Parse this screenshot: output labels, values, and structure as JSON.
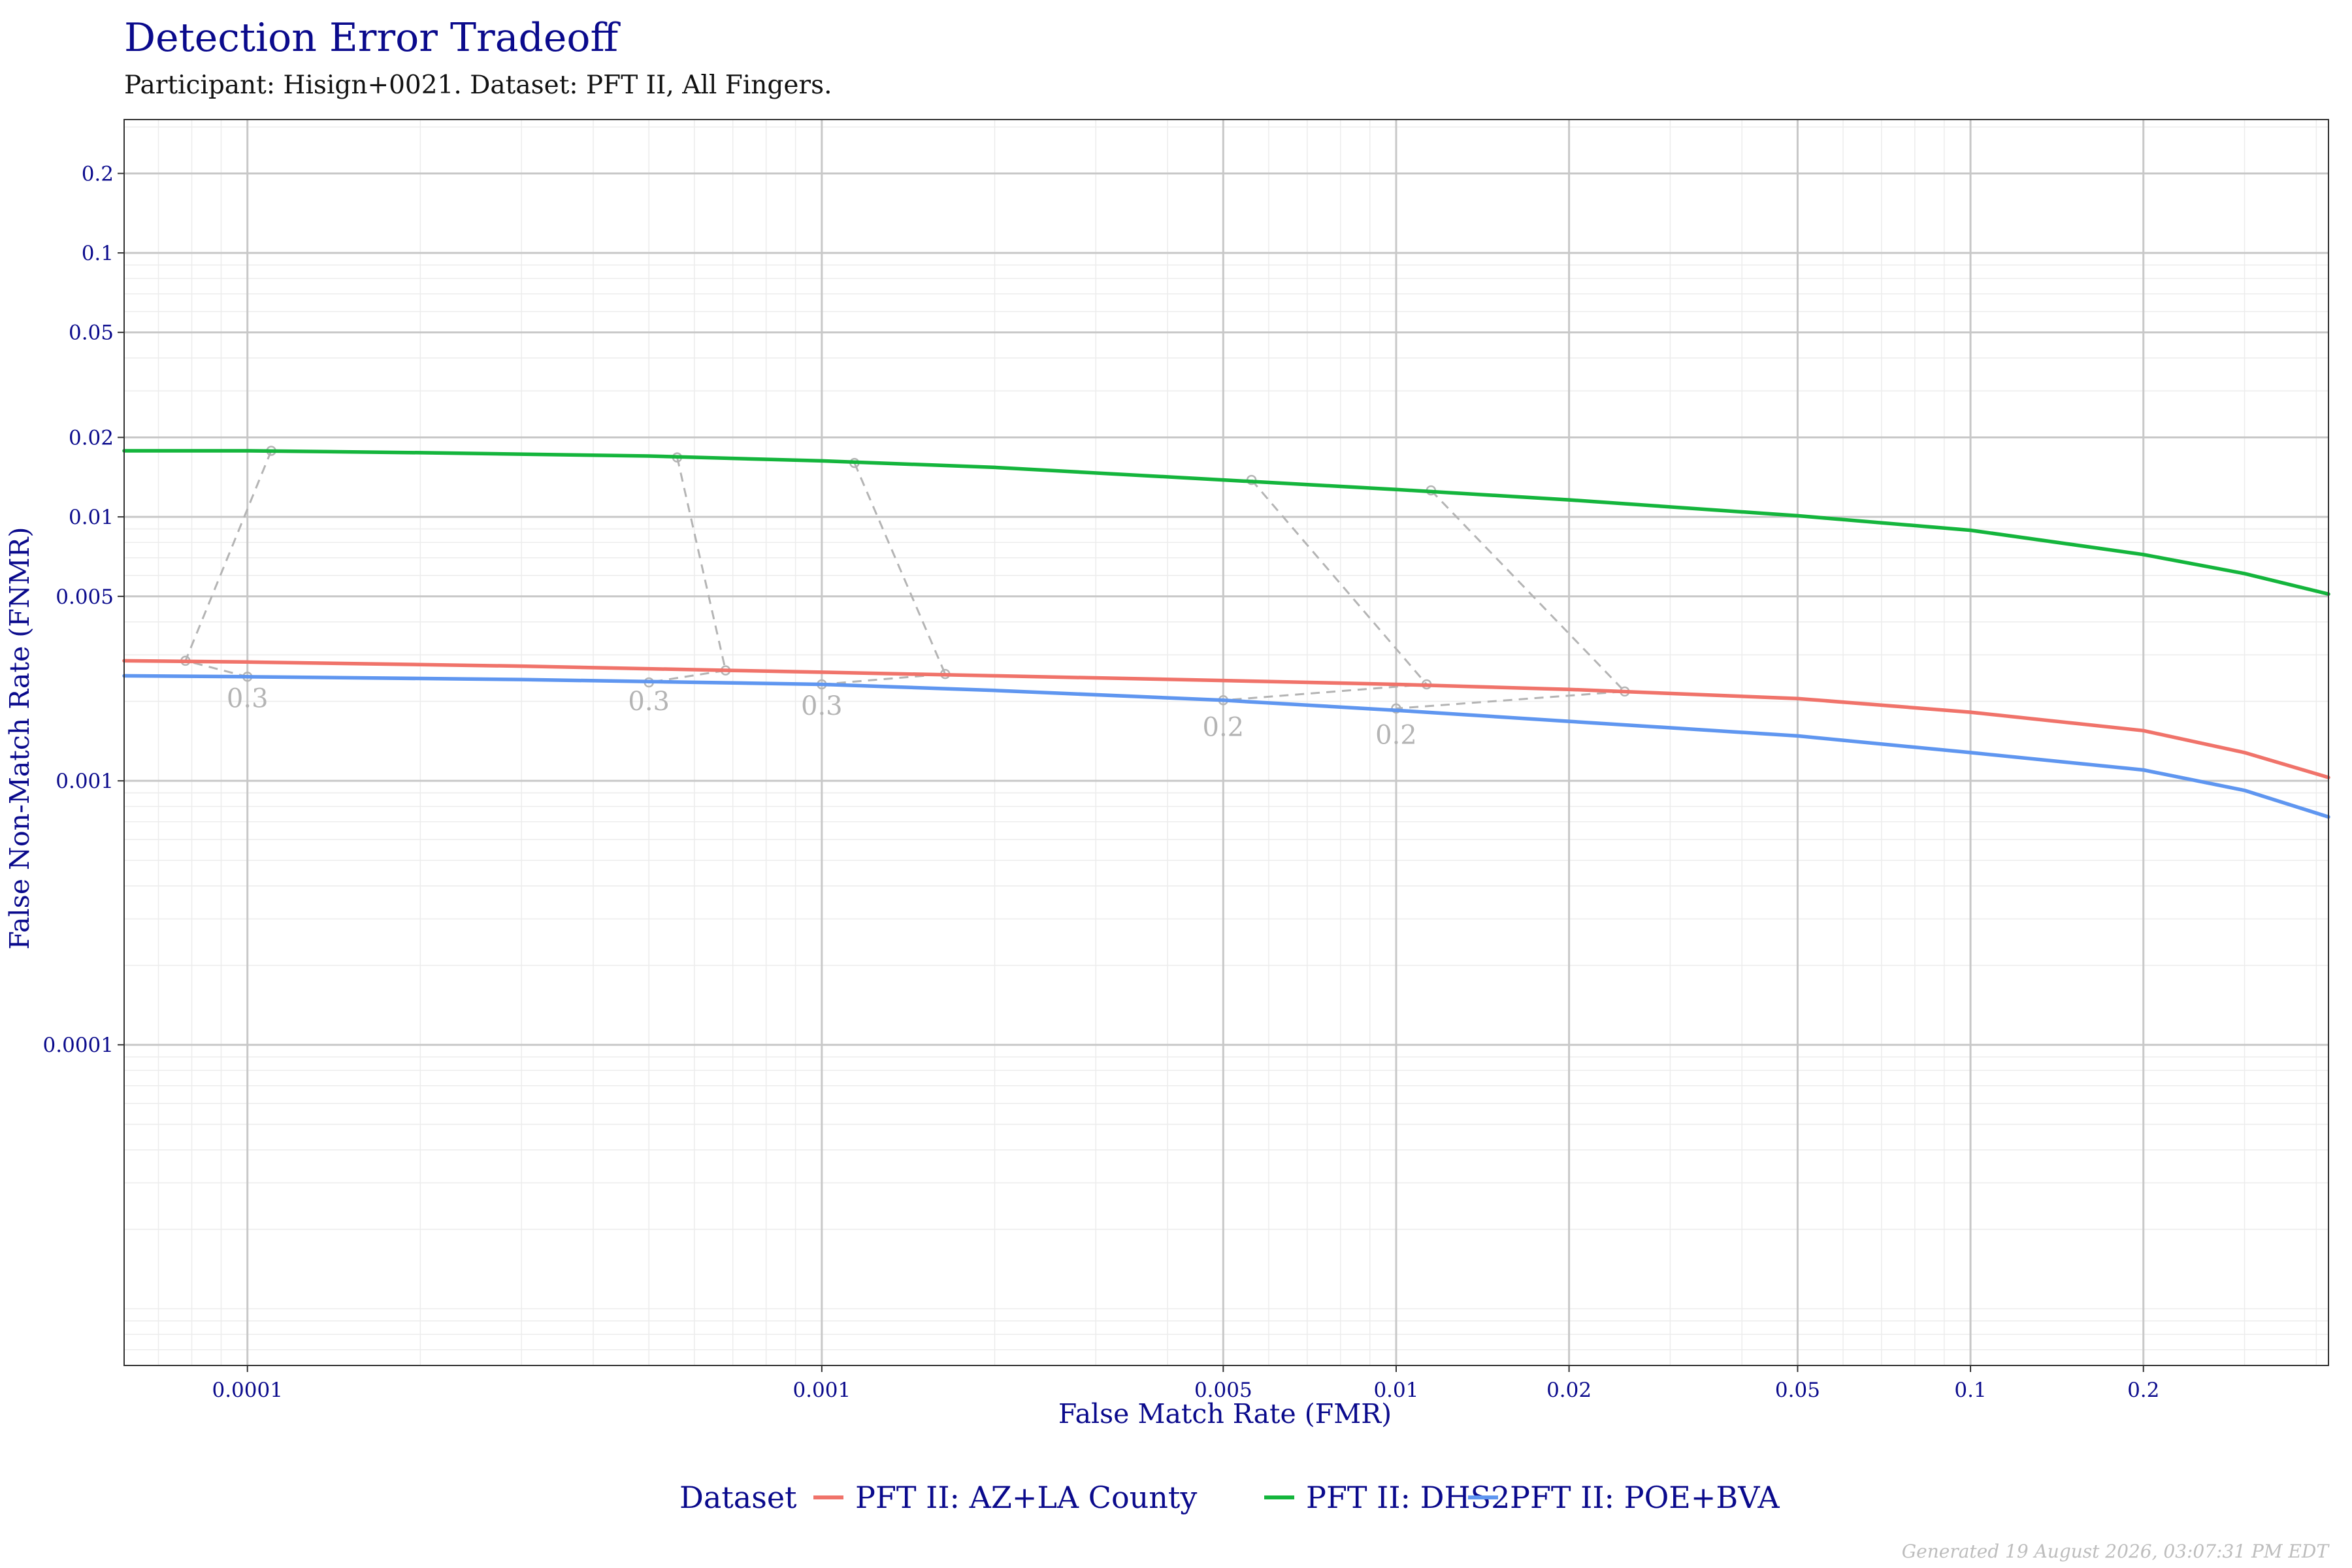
{
  "title": "Detection Error Tradeoff",
  "subtitle": "Participant: Hisign+0021. Dataset: PFT II, All Fingers.",
  "footer": "Generated 19 August 2026, 03:07:31 PM EDT",
  "colors": {
    "title": "#0a0a8c",
    "AZ": "#f0736a",
    "DHS2": "#14b53c",
    "POE": "#5f96f0",
    "threshold_links": "#b4b4b4",
    "grid_major": "#c8c8c8",
    "grid_minor": "#ececec"
  },
  "chart_data": {
    "type": "line",
    "title": "Detection Error Tradeoff",
    "subtitle": "Participant: Hisign+0021. Dataset: PFT II, All Fingers.",
    "xlabel": "False Match Rate (FMR)",
    "ylabel": "False Non-Match Rate (FNMR)",
    "x_scale": "log10",
    "y_scale": "log10",
    "xlim": [
      6.1e-05,
      0.42
    ],
    "ylim": [
      6.1e-06,
      0.32
    ],
    "x_ticks": [
      {
        "value": 0.0001,
        "label": "0.0001"
      },
      {
        "value": 0.001,
        "label": "0.001"
      },
      {
        "value": 0.005,
        "label": "0.005"
      },
      {
        "value": 0.01,
        "label": "0.01"
      },
      {
        "value": 0.02,
        "label": "0.02"
      },
      {
        "value": 0.05,
        "label": "0.05"
      },
      {
        "value": 0.1,
        "label": "0.1"
      },
      {
        "value": 0.2,
        "label": "0.2"
      }
    ],
    "y_ticks": [
      {
        "value": 0.0001,
        "label": "0.0001"
      },
      {
        "value": 0.001,
        "label": "0.001"
      },
      {
        "value": 0.005,
        "label": "0.005"
      },
      {
        "value": 0.01,
        "label": "0.01"
      },
      {
        "value": 0.02,
        "label": "0.02"
      },
      {
        "value": 0.05,
        "label": "0.05"
      },
      {
        "value": 0.1,
        "label": "0.1"
      },
      {
        "value": 0.2,
        "label": "0.2"
      }
    ],
    "grid": true,
    "legend": {
      "title": "Dataset",
      "position": "bottom"
    },
    "series": [
      {
        "key": "AZ",
        "name": "PFT II: AZ+LA County",
        "points": [
          [
            6.1e-05,
            0.00285
          ],
          [
            0.0001,
            0.00282
          ],
          [
            0.0003,
            0.00272
          ],
          [
            0.0007,
            0.00262
          ],
          [
            0.001,
            0.00258
          ],
          [
            0.002,
            0.0025
          ],
          [
            0.005,
            0.0024
          ],
          [
            0.01,
            0.00232
          ],
          [
            0.02,
            0.00222
          ],
          [
            0.05,
            0.00205
          ],
          [
            0.1,
            0.00182
          ],
          [
            0.2,
            0.00155
          ],
          [
            0.3,
            0.00128
          ],
          [
            0.42,
            0.00103
          ]
        ]
      },
      {
        "key": "DHS2",
        "name": "PFT II: DHS2",
        "points": [
          [
            6.1e-05,
            0.0178
          ],
          [
            0.0001,
            0.0178
          ],
          [
            0.0002,
            0.0175
          ],
          [
            0.0005,
            0.017
          ],
          [
            0.001,
            0.0163
          ],
          [
            0.002,
            0.0154
          ],
          [
            0.005,
            0.0138
          ],
          [
            0.01,
            0.0127
          ],
          [
            0.02,
            0.0116
          ],
          [
            0.05,
            0.0101
          ],
          [
            0.1,
            0.0089
          ],
          [
            0.2,
            0.0072
          ],
          [
            0.3,
            0.0061
          ],
          [
            0.42,
            0.0051
          ]
        ]
      },
      {
        "key": "POE",
        "name": "PFT II: POE+BVA",
        "points": [
          [
            6.1e-05,
            0.0025
          ],
          [
            0.0001,
            0.00248
          ],
          [
            0.0003,
            0.00242
          ],
          [
            0.0007,
            0.00235
          ],
          [
            0.001,
            0.00232
          ],
          [
            0.002,
            0.0022
          ],
          [
            0.005,
            0.00202
          ],
          [
            0.01,
            0.00185
          ],
          [
            0.02,
            0.00168
          ],
          [
            0.05,
            0.00148
          ],
          [
            0.1,
            0.00128
          ],
          [
            0.2,
            0.0011
          ],
          [
            0.3,
            0.00092
          ],
          [
            0.42,
            0.00073
          ]
        ]
      }
    ],
    "threshold_links": [
      {
        "label": "0.3",
        "label_at": [
          0.0001,
          0.0019
        ],
        "points": [
          [
            0.00011,
            0.0178
          ],
          [
            7.8e-05,
            0.00285
          ],
          [
            0.0001,
            0.00248
          ]
        ]
      },
      {
        "label": "0.3",
        "label_at": [
          0.0005,
          0.00185
        ],
        "points": [
          [
            0.00056,
            0.0168
          ],
          [
            0.00068,
            0.00262
          ],
          [
            0.0005,
            0.00236
          ]
        ]
      },
      {
        "label": "0.3",
        "label_at": [
          0.001,
          0.00178
        ],
        "points": [
          [
            0.00114,
            0.016
          ],
          [
            0.00164,
            0.00254
          ],
          [
            0.001,
            0.00232
          ]
        ]
      },
      {
        "label": "0.2",
        "label_at": [
          0.005,
          0.00148
        ],
        "points": [
          [
            0.0056,
            0.0138
          ],
          [
            0.0113,
            0.00232
          ],
          [
            0.005,
            0.00202
          ]
        ]
      },
      {
        "label": "0.2",
        "label_at": [
          0.01,
          0.00138
        ],
        "points": [
          [
            0.0115,
            0.0126
          ],
          [
            0.025,
            0.00218
          ],
          [
            0.01,
            0.00188
          ]
        ]
      }
    ]
  }
}
